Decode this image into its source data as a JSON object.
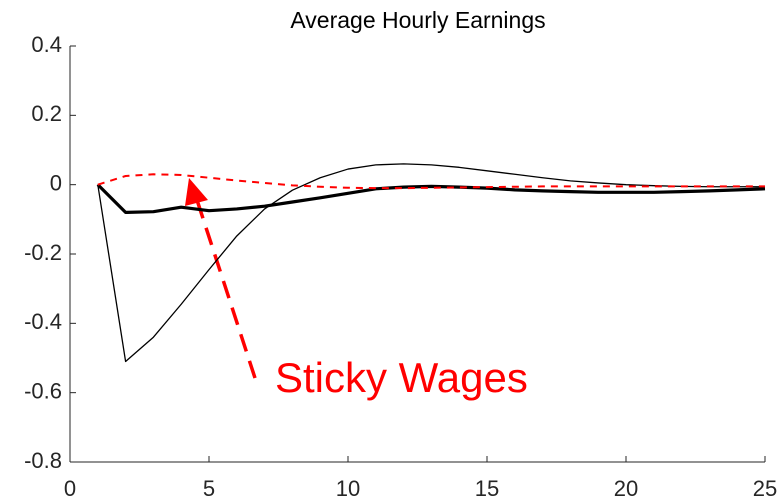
{
  "chart_data": {
    "type": "line",
    "title": "Average Hourly Earnings",
    "x": [
      1,
      2,
      3,
      4,
      5,
      6,
      7,
      8,
      9,
      10,
      11,
      12,
      13,
      14,
      15,
      16,
      17,
      18,
      19,
      20,
      21,
      22,
      23,
      24,
      25
    ],
    "series": [
      {
        "color": "#000000",
        "width": 1.3,
        "dash": false,
        "values": [
          0,
          -0.51,
          -0.44,
          -0.345,
          -0.245,
          -0.148,
          -0.07,
          -0.016,
          0.02,
          0.045,
          0.057,
          0.06,
          0.057,
          0.05,
          0.04,
          0.03,
          0.02,
          0.011,
          0.005,
          0,
          -0.003,
          -0.005,
          -0.006,
          -0.006,
          -0.006
        ]
      },
      {
        "color": "#000000",
        "width": 3.2,
        "dash": false,
        "values": [
          0,
          -0.08,
          -0.078,
          -0.065,
          -0.075,
          -0.07,
          -0.062,
          -0.05,
          -0.038,
          -0.025,
          -0.012,
          -0.007,
          -0.005,
          -0.007,
          -0.01,
          -0.015,
          -0.018,
          -0.02,
          -0.022,
          -0.022,
          -0.022,
          -0.02,
          -0.018,
          -0.015,
          -0.012
        ]
      },
      {
        "color": "#ff0000",
        "width": 2,
        "dash": true,
        "values": [
          0,
          0.025,
          0.03,
          0.028,
          0.02,
          0.012,
          0.005,
          -0.002,
          -0.006,
          -0.009,
          -0.01,
          -0.01,
          -0.009,
          -0.008,
          -0.007,
          -0.006,
          -0.005,
          -0.005,
          -0.005,
          -0.005,
          -0.005,
          -0.005,
          -0.005,
          -0.005,
          -0.005
        ]
      }
    ],
    "xlim": [
      0,
      25
    ],
    "xticks": [
      0,
      5,
      10,
      15,
      20,
      25
    ],
    "ylim": [
      -0.8,
      0.4
    ],
    "yticks": [
      -0.8,
      -0.6,
      -0.4,
      -0.2,
      0,
      0.2,
      0.4
    ],
    "annotation": "Sticky Wages"
  }
}
